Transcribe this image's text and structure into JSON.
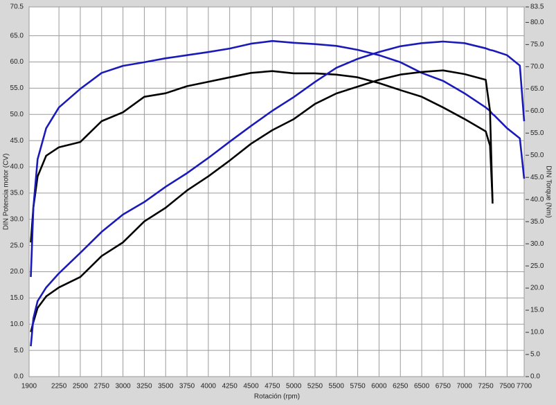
{
  "chart_data": {
    "type": "line",
    "xlabel": "Rotación (rpm)",
    "ylabel": "DIN Potencia motor (CV)",
    "y2label": "DIN Torque (Nm)",
    "xlim": [
      1900,
      7700
    ],
    "xticks": [
      1900,
      2250,
      2500,
      2750,
      3000,
      3250,
      3500,
      3750,
      4000,
      4250,
      4500,
      4750,
      5000,
      5250,
      5500,
      5750,
      6000,
      6250,
      6500,
      6750,
      7000,
      7250,
      7500,
      7700
    ],
    "ylim": [
      0,
      70.5
    ],
    "yticks": [
      {
        "value": 0,
        "label": "0.0"
      },
      {
        "value": 5,
        "label": "5.0"
      },
      {
        "value": 10,
        "label": "10.0"
      },
      {
        "value": 15,
        "label": "15.0"
      },
      {
        "value": 20,
        "label": "20.0"
      },
      {
        "value": 25,
        "label": "25.0"
      },
      {
        "value": 30,
        "label": "30.0"
      },
      {
        "value": 35,
        "label": "35.0"
      },
      {
        "value": 40,
        "label": "40.0"
      },
      {
        "value": 45,
        "label": "45.0"
      },
      {
        "value": 50,
        "label": "50.0"
      },
      {
        "value": 55,
        "label": "55.0"
      },
      {
        "value": 60,
        "label": "60.0"
      },
      {
        "value": 65,
        "label": "65.0"
      },
      70.5
    ],
    "y2lim": [
      0,
      83.5
    ],
    "y2ticks": [
      {
        "value": 0,
        "label": "0.0"
      },
      {
        "value": 5,
        "label": "5.0"
      },
      {
        "value": 10,
        "label": "10.0"
      },
      {
        "value": 15,
        "label": "15.0"
      },
      {
        "value": 20,
        "label": "20.0"
      },
      {
        "value": 25,
        "label": "25.0"
      },
      {
        "value": 30,
        "label": "30.0"
      },
      {
        "value": 35,
        "label": "35.0"
      },
      {
        "value": 40,
        "label": "40.0"
      },
      {
        "value": 45,
        "label": "45.0"
      },
      {
        "value": 50,
        "label": "50.0"
      },
      {
        "value": 55,
        "label": "55.0"
      },
      {
        "value": 60,
        "label": "60.0"
      },
      {
        "value": 65,
        "label": "65.0"
      },
      {
        "value": 70,
        "label": "70.0"
      },
      {
        "value": 75,
        "label": "75.0"
      },
      {
        "value": 80,
        "label": "80.0"
      },
      83.5
    ],
    "grid": true,
    "x": [
      1920,
      1950,
      2000,
      2100,
      2250,
      2500,
      2750,
      3000,
      3250,
      3500,
      3750,
      4000,
      4250,
      4500,
      4750,
      5000,
      5250,
      5500,
      5750,
      6000,
      6250,
      6500,
      6750,
      7000,
      7250,
      7300,
      7330,
      7350,
      7500,
      7650,
      7700
    ],
    "series": [
      {
        "color": "#000000",
        "axis": "y2",
        "values": [
          30.3,
          38.2,
          45.2,
          49.9,
          51.8,
          53.0,
          57.7,
          59.7,
          63.2,
          64.0,
          65.6,
          66.6,
          67.6,
          68.6,
          69.0,
          68.5,
          68.5,
          68.2,
          67.6,
          66.3,
          64.7,
          63.2,
          60.8,
          58.2,
          55.4,
          52.2,
          39.7,
          null,
          null,
          null,
          null
        ]
      },
      {
        "color": "#1a1ab8",
        "axis": "y2",
        "values": [
          22.5,
          38.2,
          49.1,
          56.1,
          60.8,
          65.0,
          68.6,
          70.2,
          71.0,
          71.9,
          72.6,
          73.3,
          74.1,
          75.2,
          75.8,
          75.4,
          75.1,
          74.7,
          73.8,
          72.6,
          71.0,
          68.6,
          66.8,
          64.0,
          60.8,
          60.0,
          59.3,
          59.0,
          56.1,
          53.8,
          44.7
        ]
      },
      {
        "color": "#000000",
        "values": [
          8.5,
          10.4,
          13.1,
          15.3,
          17.0,
          19.0,
          23.0,
          25.6,
          29.6,
          32.2,
          35.5,
          38.2,
          41.2,
          44.4,
          47.0,
          49.1,
          52.0,
          54.0,
          55.3,
          56.6,
          57.6,
          58.1,
          58.4,
          57.7,
          56.6,
          50.7,
          33.0,
          null,
          null,
          null,
          null
        ]
      },
      {
        "color": "#1a1ab8",
        "values": [
          5.8,
          11.1,
          14.4,
          17.0,
          19.7,
          23.6,
          27.6,
          30.9,
          33.3,
          36.2,
          38.8,
          41.7,
          44.8,
          47.8,
          50.7,
          53.3,
          56.2,
          58.9,
          60.6,
          61.9,
          63.0,
          63.6,
          63.9,
          63.6,
          62.6,
          62.3,
          62.2,
          62.1,
          61.3,
          59.3,
          48.7
        ]
      }
    ]
  }
}
